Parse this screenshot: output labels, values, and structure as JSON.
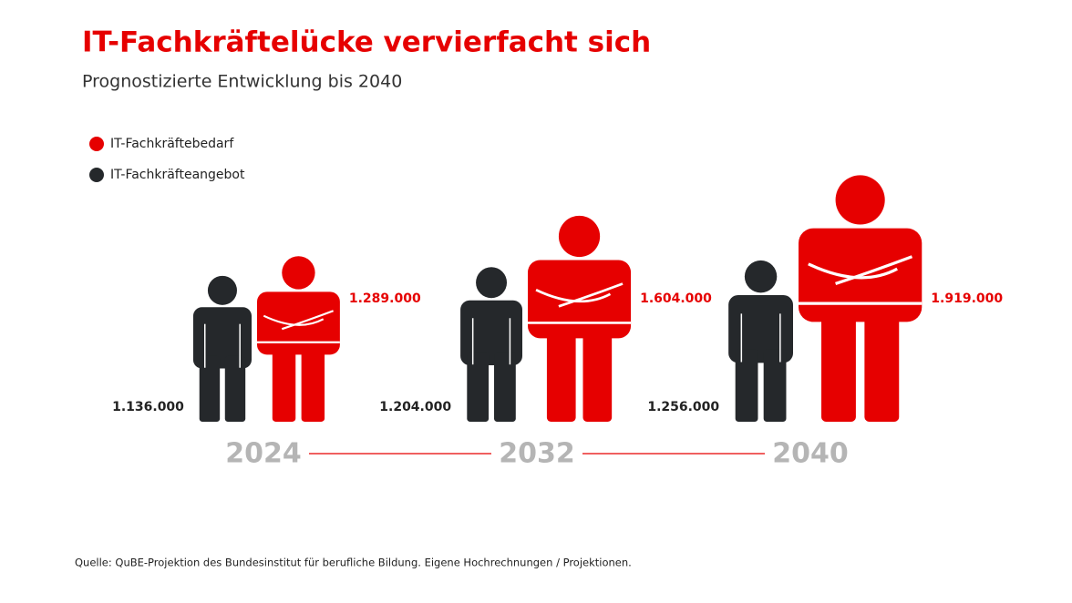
{
  "chart_data": {
    "type": "pictogram",
    "title": "IT-Fachkräftelücke vervierfacht sich",
    "subtitle": "Prognostizierte Entwicklung bis 2040",
    "categories": [
      "2024",
      "2032",
      "2040"
    ],
    "series": [
      {
        "name": "IT-Fachkräftebedarf",
        "color": "#e60000",
        "values": [
          1289000,
          1604000,
          1919000
        ],
        "value_labels": [
          "1.289.000",
          "1.604.000",
          "1.919.000"
        ]
      },
      {
        "name": "IT-Fachkräfteangebot",
        "color": "#25282b",
        "values": [
          1136000,
          1204000,
          1256000
        ],
        "value_labels": [
          "1.136.000",
          "1.204.000",
          "1.256.000"
        ]
      }
    ],
    "source": "Quelle: QuBE-Projektion des Bundesinstitut für berufliche Bildung. Eigene Hochrechnungen / Projektionen."
  }
}
